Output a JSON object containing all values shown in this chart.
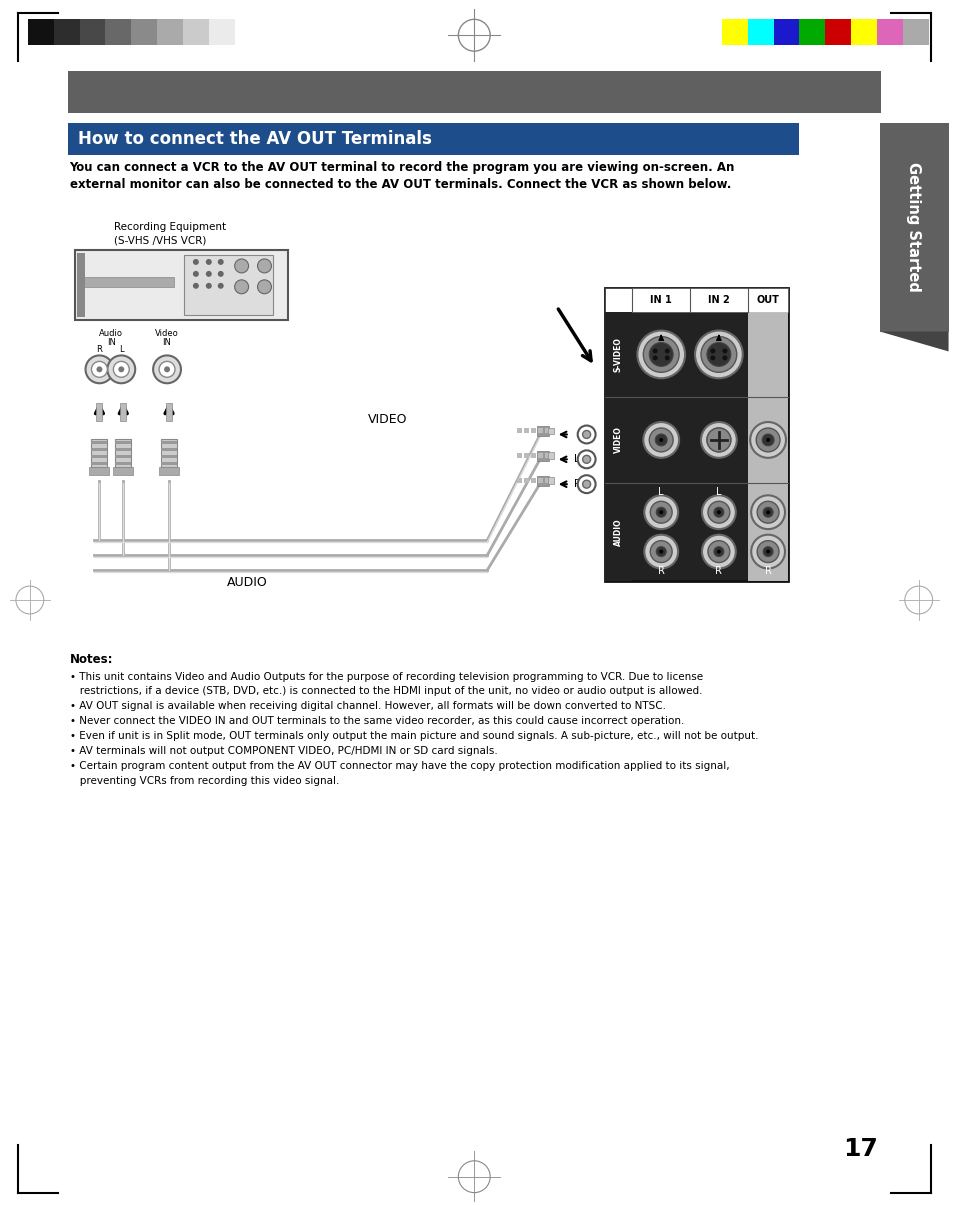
{
  "bg_color": "#ffffff",
  "top_bar_color": "#606060",
  "title_box_color": "#1e4d8c",
  "title_text": "How to connect the AV OUT Terminals",
  "title_text_color": "#ffffff",
  "intro_line1": "You can connect a VCR to the AV OUT terminal to record the program you are viewing on-screen. An",
  "intro_line2": "external monitor can also be connected to the AV OUT terminals. Connect the VCR as shown below.",
  "side_tab_color": "#606060",
  "side_tab_text": "Getting Started",
  "notes_title": "Notes:",
  "notes_lines": [
    "• This unit contains Video and Audio Outputs for the purpose of recording television programming to VCR. Due to license",
    "   restrictions, if a device (STB, DVD, etc.) is connected to the HDMI input of the unit, no video or audio output is allowed.",
    "• AV OUT signal is available when receiving digital channel. However, all formats will be down converted to NTSC.",
    "• Never connect the VIDEO IN and OUT terminals to the same video recorder, as this could cause incorrect operation.",
    "• Even if unit is in Split mode, OUT terminals only output the main picture and sound signals. A sub-picture, etc., will not be output.",
    "• AV terminals will not output COMPONENT VIDEO, PC/HDMI IN or SD card signals.",
    "• Certain program content output from the AV OUT connector may have the copy protection modification applied to its signal,",
    "   preventing VCRs from recording this video signal."
  ],
  "page_number": "17",
  "color_bars_left": [
    "#111111",
    "#2d2d2d",
    "#484848",
    "#686868",
    "#8a8a8a",
    "#aaaaaa",
    "#cbcbcb",
    "#ebebeb"
  ],
  "color_bars_right": [
    "#ffff00",
    "#00ffff",
    "#1a1acc",
    "#00aa00",
    "#cc0000",
    "#ffff00",
    "#dd66bb",
    "#aaaaaa"
  ]
}
